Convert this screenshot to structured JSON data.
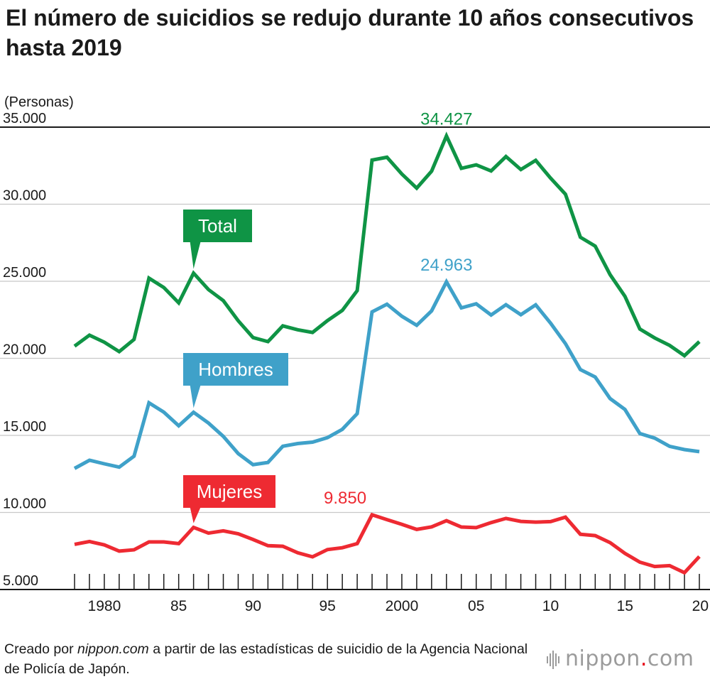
{
  "title": "El número de suicidios se redujo durante 10 años consecutivos hasta 2019",
  "footer": {
    "prefix": "Creado por ",
    "site": "nippon.com",
    "suffix": " a partir de las estadísticas de suicidio de la Agencia Nacional de Policía de Japón."
  },
  "logo": {
    "name": "nippon",
    "dot": ".",
    "tld": "com"
  },
  "chart_data": {
    "type": "line",
    "title": "El número de suicidios se redujo durante 10 años consecutivos hasta 2019",
    "xlabel": "",
    "ylabel": "(Personas)",
    "ylim": [
      5000,
      35000
    ],
    "xlim": [
      1978,
      2020
    ],
    "yticks": [
      5000,
      10000,
      15000,
      20000,
      25000,
      30000,
      35000
    ],
    "ytick_labels": [
      "5.000",
      "10.000",
      "15.000",
      "20.000",
      "25.000",
      "30.000",
      "35.000"
    ],
    "xticks": [
      1980,
      1985,
      1990,
      1995,
      2000,
      2005,
      2010,
      2015,
      2020
    ],
    "xtick_labels": [
      "1980",
      "85",
      "90",
      "95",
      "2000",
      "05",
      "10",
      "15",
      "20"
    ],
    "grid": true,
    "x": [
      1978,
      1979,
      1980,
      1981,
      1982,
      1983,
      1984,
      1985,
      1986,
      1987,
      1988,
      1989,
      1990,
      1991,
      1992,
      1993,
      1994,
      1995,
      1996,
      1997,
      1998,
      1999,
      2000,
      2001,
      2002,
      2003,
      2004,
      2005,
      2006,
      2007,
      2008,
      2009,
      2010,
      2011,
      2012,
      2013,
      2014,
      2015,
      2016,
      2017,
      2018,
      2019,
      2020
    ],
    "series": [
      {
        "name": "Total",
        "color": "#0f9445",
        "values": [
          20788,
          21503,
          21048,
          20434,
          21228,
          25202,
          24596,
          23599,
          25524,
          24460,
          23742,
          22436,
          21346,
          21084,
          22104,
          21851,
          21679,
          22445,
          23104,
          24391,
          32863,
          33048,
          31957,
          31042,
          32143,
          34427,
          32325,
          32552,
          32155,
          33093,
          32249,
          32845,
          31690,
          30651,
          27858,
          27283,
          25427,
          24025,
          21897,
          21321,
          20840,
          20169,
          21081
        ],
        "label_year": 1986,
        "peak_label": "34.427",
        "peak_year": 2003
      },
      {
        "name": "Hombres",
        "color": "#3fa1c9",
        "values": [
          12859,
          13386,
          13155,
          12942,
          13654,
          17116,
          16508,
          15624,
          16497,
          15802,
          14934,
          13818,
          13102,
          13242,
          14296,
          14468,
          14560,
          14853,
          15393,
          16416,
          23013,
          23512,
          22727,
          22144,
          23080,
          24963,
          23272,
          23540,
          22813,
          23478,
          22831,
          23472,
          22283,
          20955,
          19273,
          18787,
          17386,
          16681,
          15121,
          14826,
          14290,
          14078,
          13943
        ],
        "label_year": 1986,
        "peak_label": "24.963",
        "peak_year": 2003
      },
      {
        "name": "Mujeres",
        "color": "#ee2a32",
        "values": [
          7929,
          8117,
          7893,
          7492,
          7574,
          8086,
          8088,
          7975,
          9027,
          8658,
          8808,
          8618,
          8244,
          7842,
          7808,
          7383,
          7119,
          7592,
          7711,
          7975,
          9850,
          9536,
          9230,
          8898,
          9063,
          9464,
          9053,
          9012,
          9342,
          9615,
          9418,
          9373,
          9407,
          9696,
          8585,
          8496,
          8041,
          7344,
          6776,
          6495,
          6550,
          6091,
          7138
        ],
        "label_year": 1986,
        "peak_label": "9.850",
        "peak_year": 1998
      }
    ],
    "legend": "inline-callouts"
  }
}
